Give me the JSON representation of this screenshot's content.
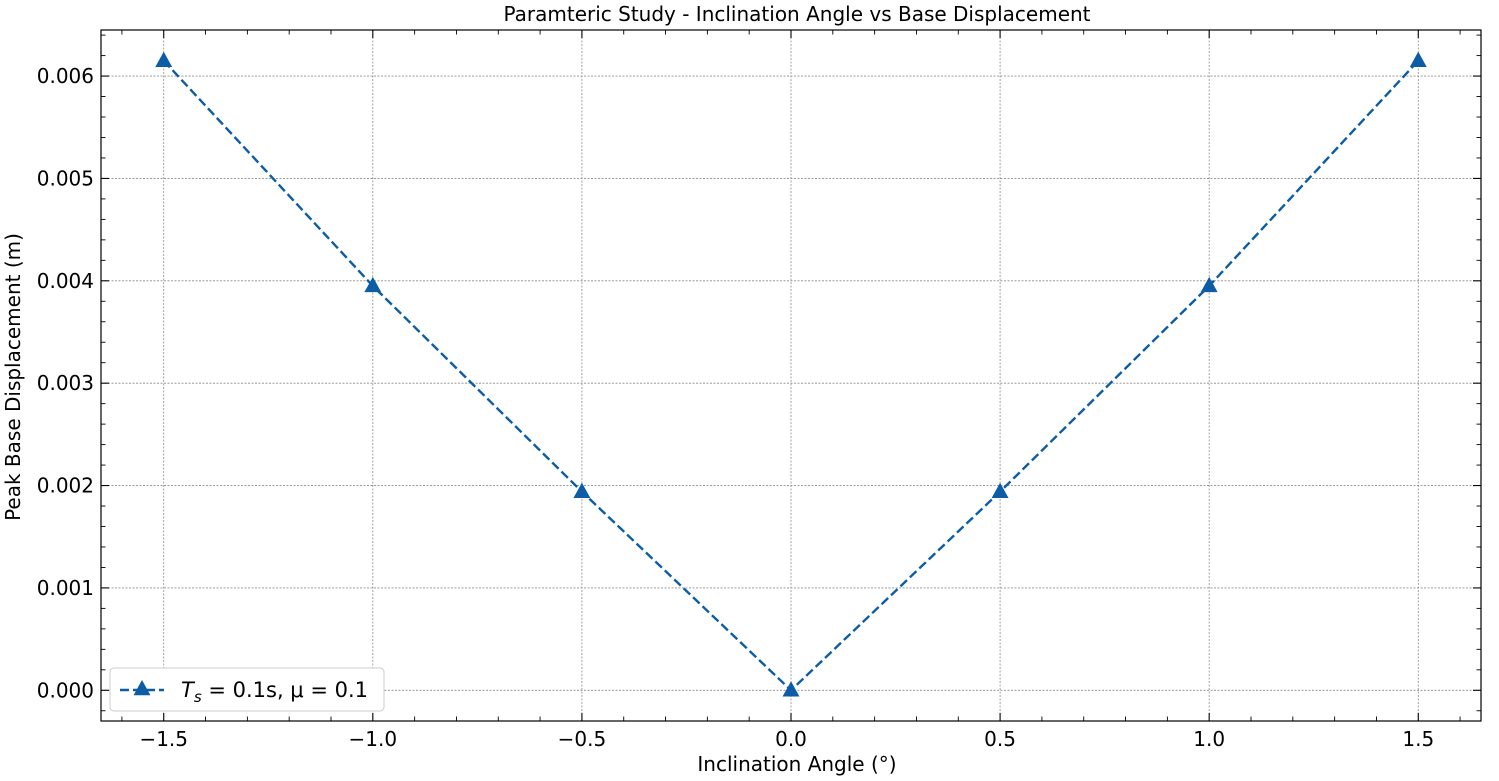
{
  "chart_data": {
    "type": "line",
    "title": "Paramteric Study - Inclination Angle vs Base Displacement",
    "xlabel": "Inclination Angle (°)",
    "ylabel": "Peak Base Displacement (m)",
    "xlim": [
      -1.65,
      1.65
    ],
    "ylim": [
      -0.0003,
      0.00645
    ],
    "x_ticks": [
      -1.5,
      -1.0,
      -0.5,
      0.0,
      0.5,
      1.0,
      1.5
    ],
    "x_tick_labels": [
      "−1.5",
      "−1.0",
      "−0.5",
      "0.0",
      "0.5",
      "1.0",
      "1.5"
    ],
    "y_ticks": [
      0.0,
      0.001,
      0.002,
      0.003,
      0.004,
      0.005,
      0.006
    ],
    "y_tick_labels": [
      "0.000",
      "0.001",
      "0.002",
      "0.003",
      "0.004",
      "0.005",
      "0.006"
    ],
    "grid": true,
    "legend_position": "lower-left",
    "series": [
      {
        "name": "Ts = 0.1s, μ = 0.1",
        "legend_main": "T",
        "legend_sub": "s",
        "legend_rest": " = 0.1s, μ = 0.1",
        "line_style": "dashed",
        "marker": "triangle-up",
        "color": "#0C5DA5",
        "x": [
          -1.5,
          -1.0,
          -0.5,
          0.0,
          0.5,
          1.0,
          1.5
        ],
        "values": [
          0.00615,
          0.00395,
          0.00194,
          0.0,
          0.00194,
          0.00395,
          0.00615
        ]
      }
    ]
  }
}
